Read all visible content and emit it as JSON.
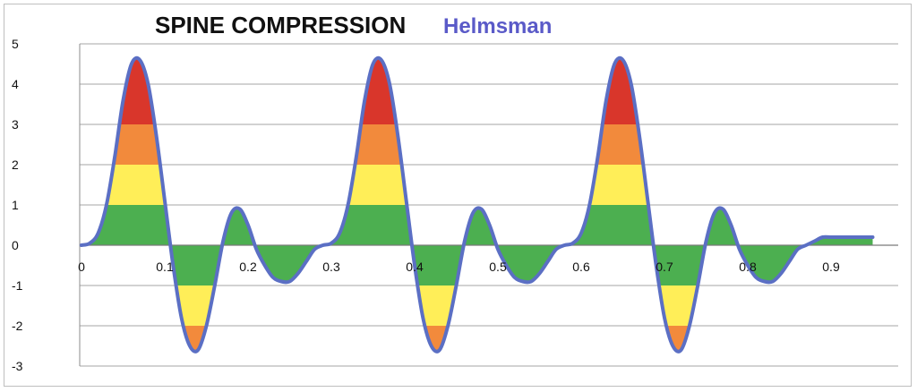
{
  "chart_data": {
    "type": "area",
    "title": "SPINE COMPRESSION",
    "subtitle": "Helmsman",
    "xlabel": "",
    "ylabel": "",
    "xlim": [
      0,
      0.955
    ],
    "ylim": [
      -3,
      5
    ],
    "x_ticks": [
      "0",
      "0.1",
      "0.2",
      "0.3",
      "0.4",
      "0.5",
      "0.6",
      "0.7",
      "0.8",
      "0.9"
    ],
    "y_ticks": [
      "5",
      "4",
      "3",
      "2",
      "1",
      "0",
      "-1",
      "-2",
      "-3"
    ],
    "grid": "horizontal",
    "legend": "none",
    "band_colors": {
      "0-1": "#4caf50",
      "1-2": "#ffee58",
      "2-3": "#f28a3c",
      "3-5": "#d9362b",
      "0--1": "#4caf50",
      "-1--2": "#ffee58",
      "-2--3": "#f28a3c"
    },
    "line_color": "#5b6fc4",
    "subtitle_color": "#5a5ac8",
    "series": [
      {
        "x": [
          0,
          0.01,
          0.02,
          0.03,
          0.04,
          0.05,
          0.06,
          0.07,
          0.08,
          0.09,
          0.1,
          0.11,
          0.12,
          0.13,
          0.14,
          0.15,
          0.16,
          0.17,
          0.18,
          0.19,
          0.2,
          0.21,
          0.22,
          0.23,
          0.24,
          0.25,
          0.26,
          0.27,
          0.28,
          0.29,
          0.3,
          0.31,
          0.32,
          0.33,
          0.34,
          0.35,
          0.36,
          0.37,
          0.38,
          0.39,
          0.4,
          0.41,
          0.42,
          0.43,
          0.44,
          0.45,
          0.46,
          0.47,
          0.48,
          0.49,
          0.5,
          0.51,
          0.52,
          0.53,
          0.54,
          0.55,
          0.56,
          0.57,
          0.58,
          0.59,
          0.6,
          0.61,
          0.62,
          0.63,
          0.64,
          0.65,
          0.66,
          0.67,
          0.68,
          0.69,
          0.7,
          0.71,
          0.72,
          0.73,
          0.74,
          0.75,
          0.76,
          0.77,
          0.78,
          0.79,
          0.8,
          0.81,
          0.82,
          0.83,
          0.84,
          0.85,
          0.86,
          0.87,
          0.88,
          0.89,
          0.9,
          0.91,
          0.92,
          0.93,
          0.94,
          0.95
        ],
        "y": [
          0.0,
          0.05,
          0.3,
          1.0,
          2.2,
          3.6,
          4.5,
          4.6,
          4.0,
          2.7,
          1.1,
          -0.5,
          -1.8,
          -2.5,
          -2.6,
          -2.0,
          -1.0,
          0.1,
          0.8,
          0.9,
          0.5,
          -0.1,
          -0.5,
          -0.8,
          -0.9,
          -0.9,
          -0.7,
          -0.4,
          -0.1,
          0.0,
          0.05,
          0.3,
          1.0,
          2.2,
          3.6,
          4.5,
          4.6,
          4.0,
          2.7,
          1.1,
          -0.5,
          -1.8,
          -2.5,
          -2.6,
          -2.0,
          -1.0,
          0.1,
          0.8,
          0.9,
          0.5,
          -0.1,
          -0.5,
          -0.8,
          -0.9,
          -0.9,
          -0.7,
          -0.4,
          -0.1,
          0.0,
          0.05,
          0.3,
          1.0,
          2.2,
          3.6,
          4.5,
          4.6,
          4.0,
          2.7,
          1.1,
          -0.5,
          -1.8,
          -2.5,
          -2.6,
          -2.0,
          -1.0,
          0.1,
          0.8,
          0.9,
          0.5,
          -0.1,
          -0.5,
          -0.8,
          -0.9,
          -0.9,
          -0.7,
          -0.4,
          -0.1,
          0.0,
          0.1,
          0.2,
          0.2,
          0.2,
          0.2,
          0.2,
          0.2,
          0.2
        ]
      }
    ]
  }
}
